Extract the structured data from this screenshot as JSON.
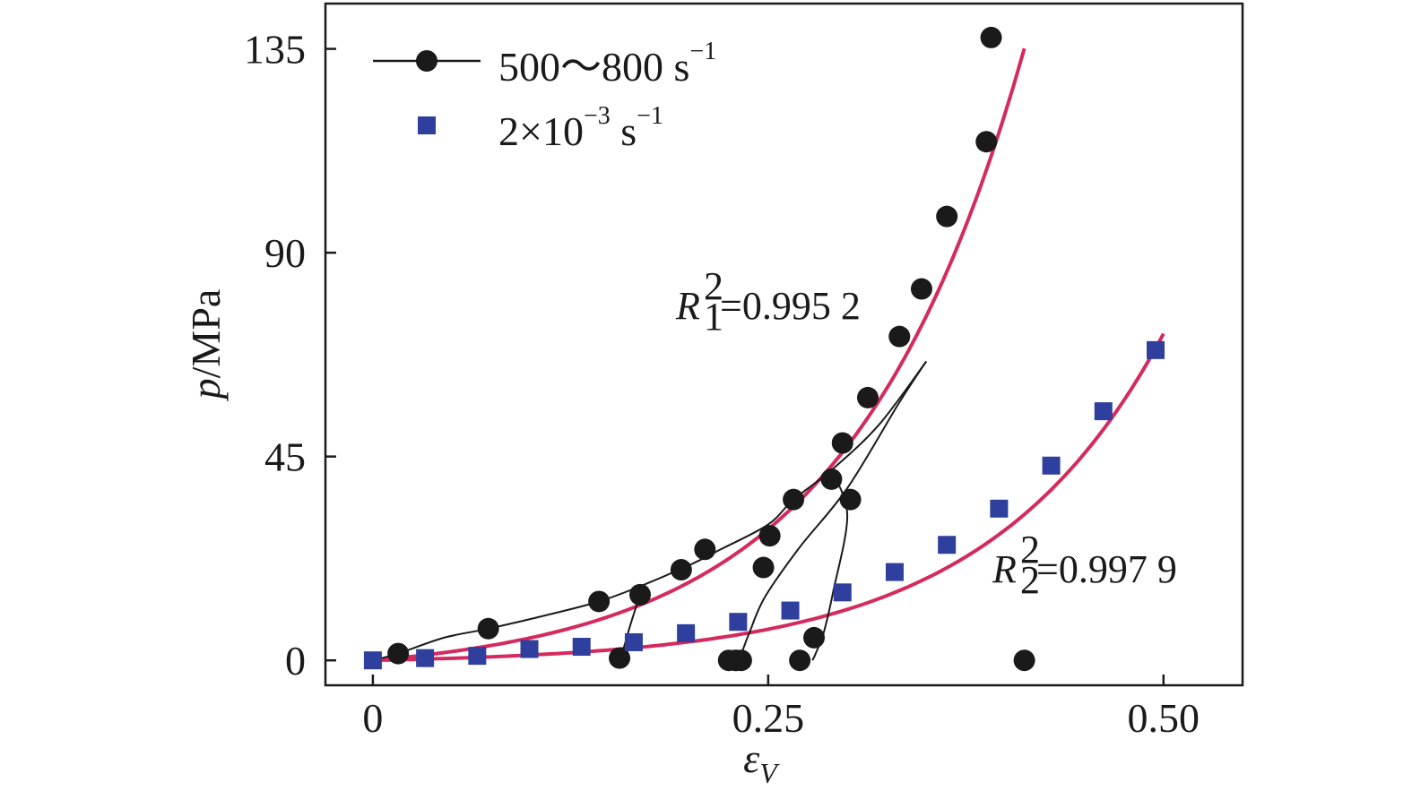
{
  "chart_data": {
    "type": "scatter",
    "xlabel": {
      "main": "ε",
      "sub": "V"
    },
    "ylabel": {
      "italic": "p",
      "rest": "/MPa"
    },
    "xlim": [
      -0.03,
      0.55
    ],
    "ylim": [
      -5.5,
      145
    ],
    "x_ticks": [
      {
        "value": 0,
        "label": "0"
      },
      {
        "value": 0.25,
        "label": "0.25"
      },
      {
        "value": 0.5,
        "label": "0.50"
      }
    ],
    "y_ticks": [
      {
        "value": 0,
        "label": "0"
      },
      {
        "value": 45,
        "label": "45"
      },
      {
        "value": 90,
        "label": "90"
      },
      {
        "value": 135,
        "label": "135"
      }
    ],
    "legend": [
      {
        "text": "500～800 s",
        "sup": "−1",
        "marker": "circle",
        "line": true
      },
      {
        "text": "2×10",
        "sup1": "−3",
        "text2": " s",
        "sup2": "−1",
        "marker": "square",
        "line": false
      }
    ],
    "annotations": [
      {
        "R": "R",
        "sup": "2",
        "sub": "1",
        "value": "=0.995 2"
      },
      {
        "R": "R",
        "sup": "2",
        "sub": "2",
        "value": "=0.997 9"
      }
    ],
    "colors": {
      "dynamic": "#1a1a1a",
      "static": "#2e3f9e",
      "fit": "#d42a5e"
    },
    "series": [
      {
        "name": "500～800 s⁻¹",
        "marker": "circle",
        "color": "#1a1a1a",
        "x": [
          0.016,
          0.073,
          0.143,
          0.169,
          0.156,
          0.225,
          0.23,
          0.229,
          0.233,
          0.247,
          0.251,
          0.21,
          0.195,
          0.266,
          0.27,
          0.279,
          0.29,
          0.302,
          0.297,
          0.313,
          0.333,
          0.347,
          0.363,
          0.388,
          0.391,
          0.412
        ],
        "y": [
          1.5,
          7.0,
          13.0,
          14.5,
          0.5,
          0.0,
          0.0,
          0.0,
          0.0,
          20.5,
          27.5,
          24.5,
          20.0,
          35.5,
          0.0,
          5.0,
          40.0,
          35.5,
          48.0,
          58.0,
          71.5,
          82.0,
          98.0,
          114.5,
          137.5,
          0.0
        ]
      },
      {
        "name": "2×10⁻³ s⁻¹",
        "marker": "square",
        "color": "#2e3f9e",
        "x": [
          0.0,
          0.033,
          0.066,
          0.099,
          0.132,
          0.165,
          0.198,
          0.231,
          0.264,
          0.297,
          0.33,
          0.363,
          0.396,
          0.429,
          0.462,
          0.495
        ],
        "y": [
          0.0,
          0.5,
          1.0,
          2.5,
          3.0,
          4.0,
          6.0,
          8.5,
          11.0,
          15.0,
          19.5,
          25.5,
          33.5,
          43.0,
          55.0,
          68.5
        ]
      }
    ],
    "dynamic_curves": [
      [
        [
          0.0,
          0.0
        ],
        [
          0.016,
          1.5
        ],
        [
          0.045,
          5.0
        ],
        [
          0.073,
          7.0
        ],
        [
          0.11,
          10.0
        ],
        [
          0.143,
          13.0
        ],
        [
          0.17,
          16.5
        ],
        [
          0.2,
          21.0
        ],
        [
          0.22,
          24.5
        ],
        [
          0.25,
          30.0
        ],
        [
          0.266,
          35.5
        ],
        [
          0.29,
          42.0
        ],
        [
          0.32,
          52.0
        ],
        [
          0.35,
          66.0
        ]
      ],
      [
        [
          0.169,
          14.5
        ],
        [
          0.163,
          8.0
        ],
        [
          0.158,
          2.0
        ],
        [
          0.156,
          0.3
        ]
      ],
      [
        [
          0.35,
          66.0
        ],
        [
          0.333,
          57.0
        ],
        [
          0.3,
          38.0
        ],
        [
          0.27,
          25.0
        ],
        [
          0.248,
          14.0
        ],
        [
          0.238,
          6.0
        ],
        [
          0.233,
          1.5
        ],
        [
          0.23,
          0.0
        ]
      ],
      [
        [
          0.29,
          42.0
        ],
        [
          0.3,
          32.0
        ],
        [
          0.291,
          15.0
        ],
        [
          0.285,
          6.0
        ],
        [
          0.28,
          1.5
        ],
        [
          0.278,
          0.0
        ]
      ]
    ],
    "fit_curves": [
      {
        "a": 3.44,
        "b": 8.97,
        "c": -3.44,
        "x_end": 0.412
      },
      {
        "a": 0.81,
        "b": 9.0,
        "c": -0.81,
        "x_end": 0.5
      }
    ]
  }
}
